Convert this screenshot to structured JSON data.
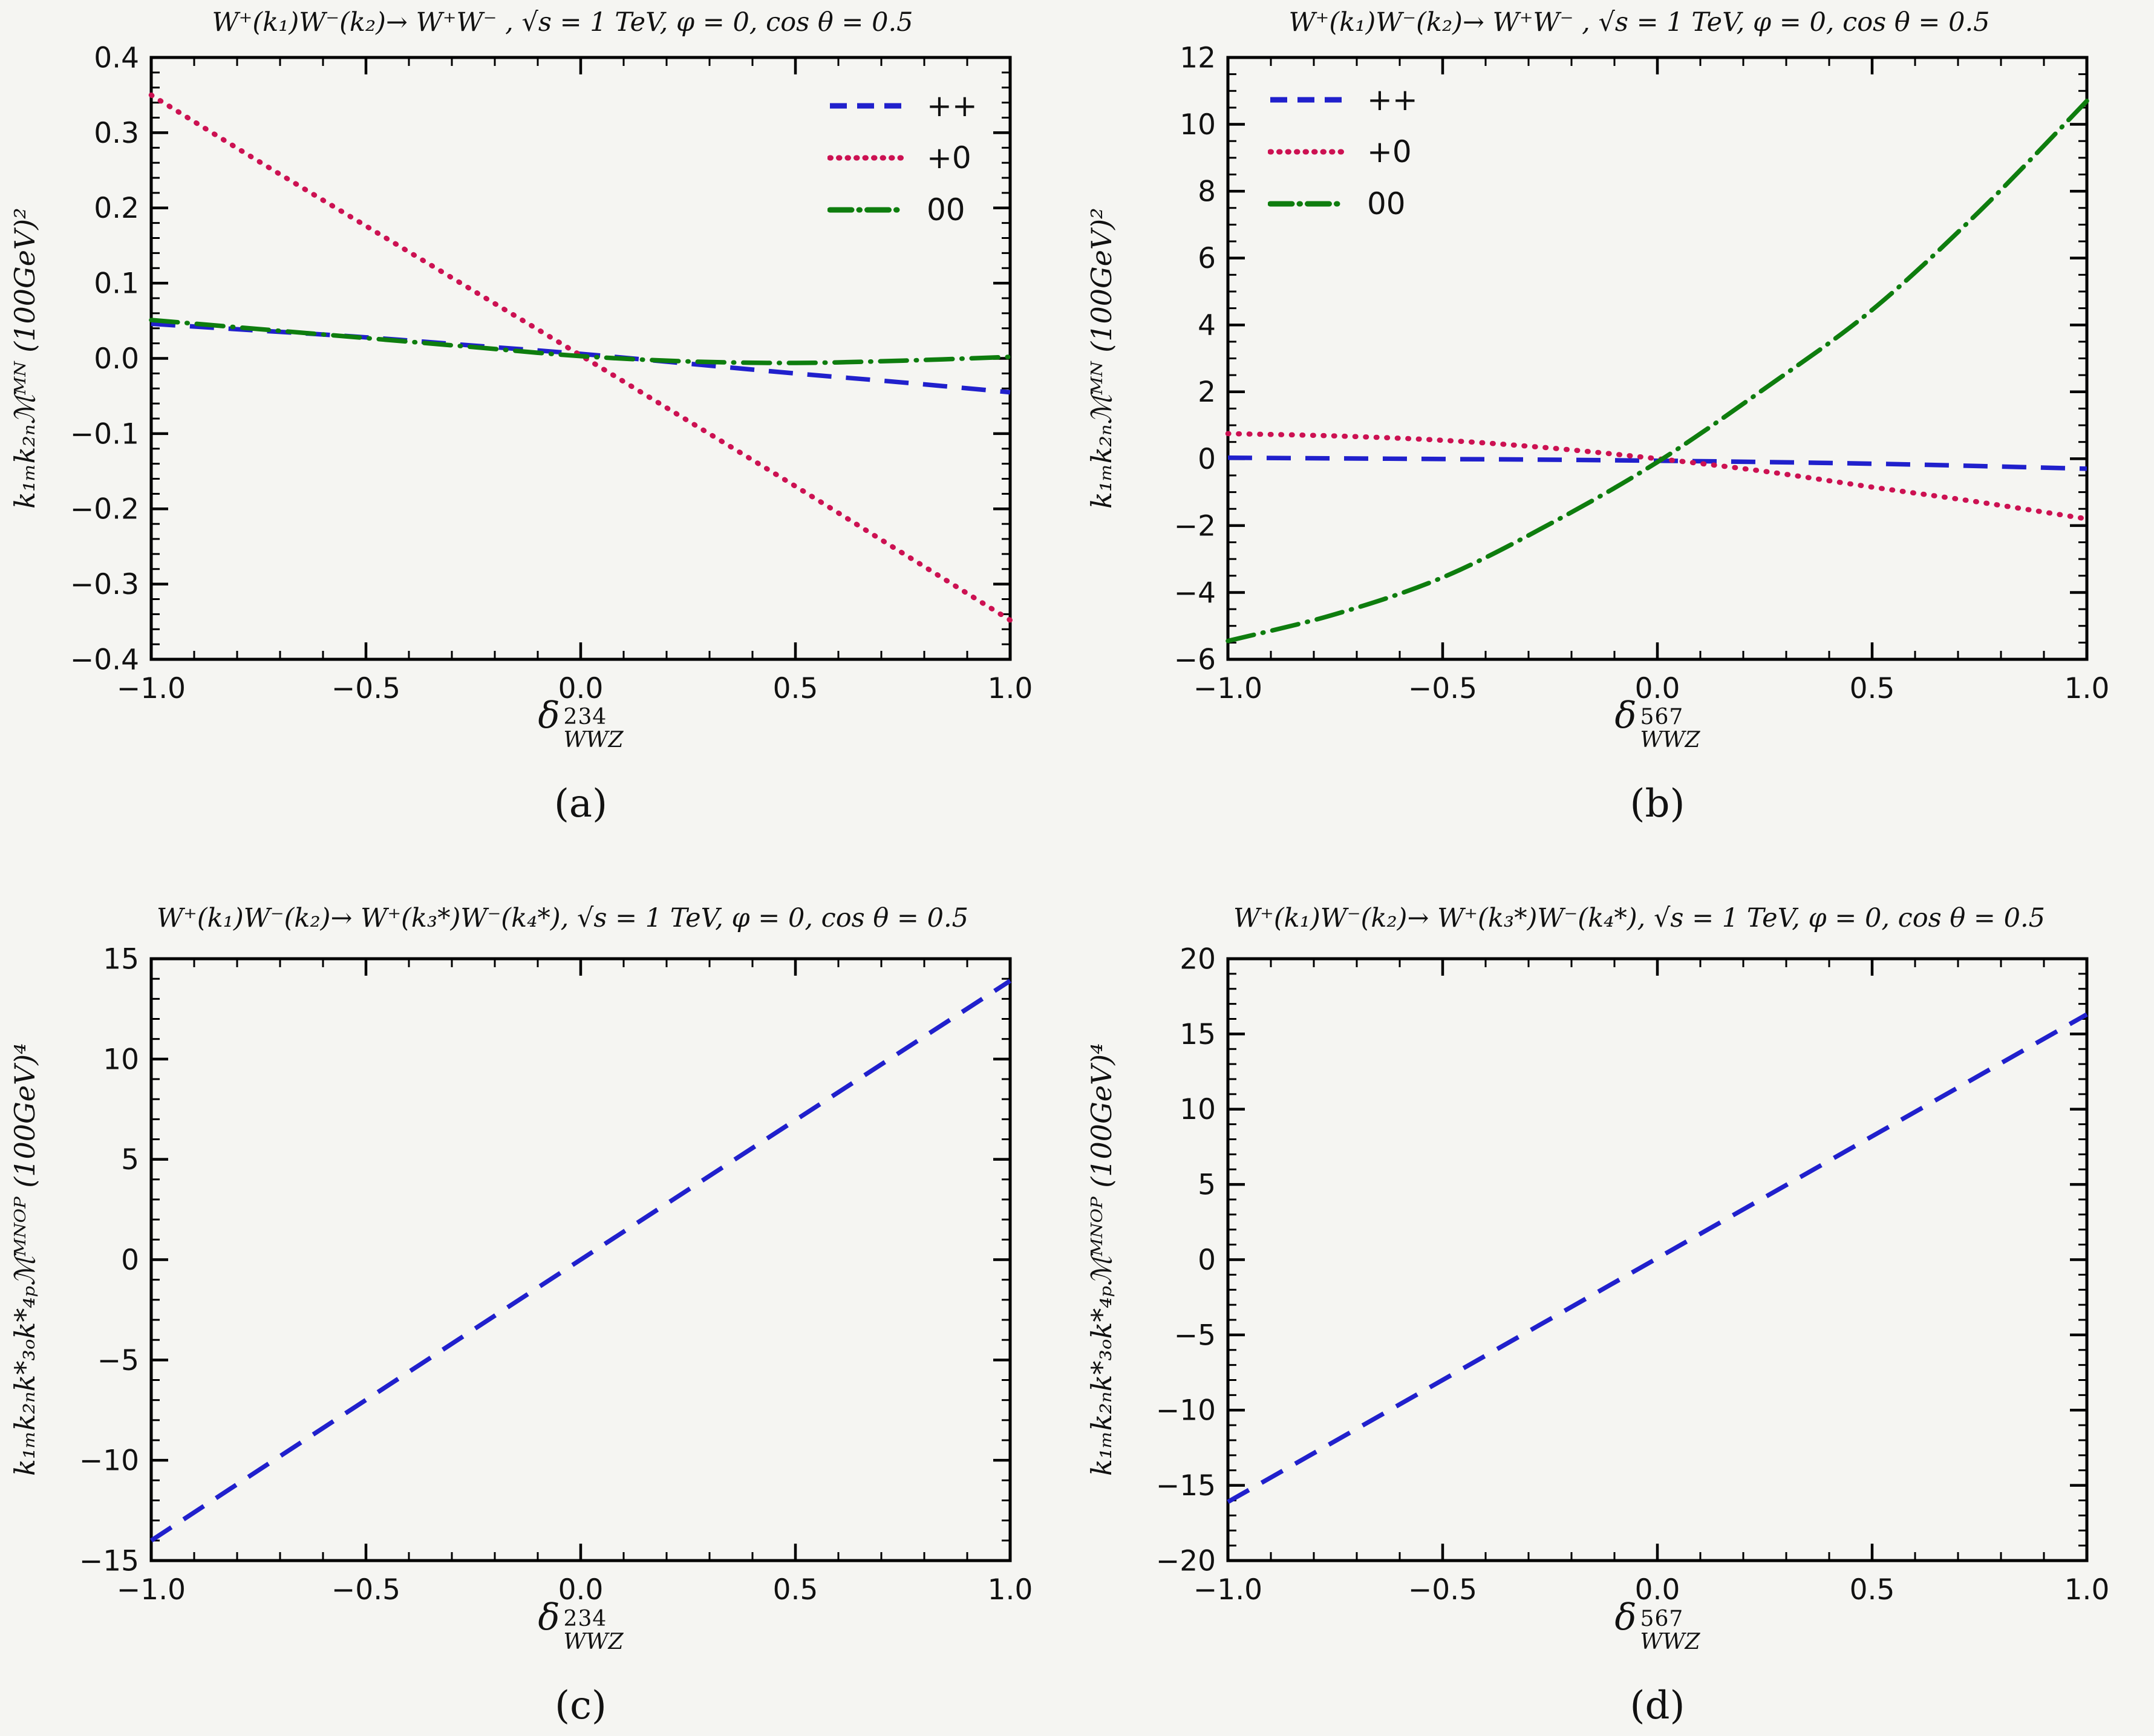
{
  "figure": {
    "background": "#f5f5f2",
    "frame_color": "#000000",
    "accent_blue": "#2020cc",
    "accent_red": "#cc1152",
    "accent_green": "#0e7d0e"
  },
  "chart_data": [
    {
      "id": "a",
      "type": "line",
      "title": "W⁺(k₁)W⁻(k₂)→ W⁺W⁻ ,  √s = 1 TeV,  φ = 0, cos θ = 0.5",
      "caption": "(a)",
      "ylabel": "k₁ₘk₂ₙℳᴹᴺ (100GeV)²",
      "xlabel_base": "δ",
      "xlabel_sup": "234",
      "xlabel_sub": "WWZ",
      "xlim": [
        -1.0,
        1.0
      ],
      "ylim": [
        -0.4,
        0.4
      ],
      "xticks": [
        -1.0,
        -0.5,
        0.0,
        0.5,
        1.0
      ],
      "yticks": [
        0.4,
        0.3,
        0.2,
        0.1,
        0.0,
        -0.1,
        -0.2,
        -0.3,
        -0.4
      ],
      "xtick_decimals": 1,
      "ytick_decimals": 1,
      "minor_x_step": 0.1,
      "minor_y_step": 0.02,
      "grid": false,
      "legend_pos": "top-right",
      "series": [
        {
          "name": "++",
          "style": "dashed",
          "color": "#2020cc",
          "x": [
            -1,
            -0.75,
            -0.5,
            -0.25,
            0,
            0.25,
            0.5,
            0.75,
            1
          ],
          "y": [
            0.046,
            0.037,
            0.028,
            0.017,
            0.006,
            -0.007,
            -0.02,
            -0.032,
            -0.045
          ]
        },
        {
          "name": "+0",
          "style": "dotted",
          "color": "#cc1152",
          "x": [
            -1,
            -0.75,
            -0.5,
            -0.25,
            0,
            0.25,
            0.5,
            0.75,
            1
          ],
          "y": [
            0.35,
            0.262,
            0.176,
            0.09,
            0.004,
            -0.083,
            -0.17,
            -0.259,
            -0.348
          ]
        },
        {
          "name": "00",
          "style": "dashdot",
          "color": "#0e7d0e",
          "x": [
            -1,
            -0.75,
            -0.5,
            -0.25,
            0,
            0.25,
            0.5,
            0.75,
            1
          ],
          "y": [
            0.051,
            0.039,
            0.027,
            0.015,
            0.003,
            -0.004,
            -0.006,
            -0.003,
            0.002
          ]
        }
      ]
    },
    {
      "id": "b",
      "type": "line",
      "title": "W⁺(k₁)W⁻(k₂)→ W⁺W⁻ ,  √s = 1 TeV,  φ = 0, cos θ = 0.5",
      "caption": "(b)",
      "ylabel": "k₁ₘk₂ₙℳᴹᴺ (100GeV)²",
      "xlabel_base": "δ",
      "xlabel_sup": "567",
      "xlabel_sub": "WWZ",
      "xlim": [
        -1.0,
        1.0
      ],
      "ylim": [
        -6,
        12
      ],
      "xticks": [
        -1.0,
        -0.5,
        0.0,
        0.5,
        1.0
      ],
      "yticks": [
        12,
        10,
        8,
        6,
        4,
        2,
        0,
        -2,
        -4,
        -6
      ],
      "xtick_decimals": 1,
      "ytick_decimals": 0,
      "minor_x_step": 0.1,
      "minor_y_step": 0.5,
      "grid": false,
      "legend_pos": "top-left",
      "series": [
        {
          "name": "++",
          "style": "dashed",
          "color": "#2020cc",
          "x": [
            -1,
            -0.75,
            -0.5,
            -0.25,
            0,
            0.25,
            0.5,
            0.75,
            1
          ],
          "y": [
            0.03,
            0.01,
            -0.01,
            -0.03,
            -0.06,
            -0.1,
            -0.15,
            -0.22,
            -0.3
          ]
        },
        {
          "name": "+0",
          "style": "dotted",
          "color": "#cc1152",
          "x": [
            -1,
            -0.75,
            -0.5,
            -0.25,
            0,
            0.25,
            0.5,
            0.75,
            1
          ],
          "y": [
            0.75,
            0.68,
            0.55,
            0.32,
            0.0,
            -0.38,
            -0.85,
            -1.3,
            -1.8
          ]
        },
        {
          "name": "00",
          "style": "dashdot",
          "color": "#0e7d0e",
          "x": [
            -1,
            -0.75,
            -0.5,
            -0.25,
            0,
            0.25,
            0.5,
            0.75,
            1
          ],
          "y": [
            -5.45,
            -4.65,
            -3.55,
            -1.95,
            -0.1,
            2.1,
            4.45,
            7.4,
            10.7
          ]
        }
      ]
    },
    {
      "id": "c",
      "type": "line",
      "title": "W⁺(k₁)W⁻(k₂)→ W⁺(k₃*)W⁻(k₄*),  √s = 1 TeV,  φ = 0, cos θ = 0.5",
      "caption": "(c)",
      "ylabel": "k₁ₘk₂ₙk*₃ₒk*₄ₚℳᴹᴺᴼᴾ (100GeV)⁴",
      "xlabel_base": "δ",
      "xlabel_sup": "234",
      "xlabel_sub": "WWZ",
      "xlim": [
        -1.0,
        1.0
      ],
      "ylim": [
        -15,
        15
      ],
      "xticks": [
        -1.0,
        -0.5,
        0.0,
        0.5,
        1.0
      ],
      "yticks": [
        15,
        10,
        5,
        0,
        -5,
        -10,
        -15
      ],
      "xtick_decimals": 1,
      "ytick_decimals": 0,
      "minor_x_step": 0.1,
      "minor_y_step": 1,
      "grid": false,
      "legend_pos": "none",
      "series": [
        {
          "name": "",
          "style": "dashed",
          "color": "#2020cc",
          "x": [
            -1,
            0,
            1
          ],
          "y": [
            -14.0,
            0.0,
            13.9
          ]
        }
      ]
    },
    {
      "id": "d",
      "type": "line",
      "title": "W⁺(k₁)W⁻(k₂)→ W⁺(k₃*)W⁻(k₄*),  √s = 1 TeV,  φ = 0, cos θ = 0.5",
      "caption": "(d)",
      "ylabel": "k₁ₘk₂ₙk*₃ₒk*₄ₚℳᴹᴺᴼᴾ (100GeV)⁴",
      "xlabel_base": "δ",
      "xlabel_sup": "567",
      "xlabel_sub": "WWZ",
      "xlim": [
        -1.0,
        1.0
      ],
      "ylim": [
        -20,
        20
      ],
      "xticks": [
        -1.0,
        -0.5,
        0.0,
        0.5,
        1.0
      ],
      "yticks": [
        20,
        15,
        10,
        5,
        0,
        -5,
        -10,
        -15,
        -20
      ],
      "xtick_decimals": 1,
      "ytick_decimals": 0,
      "minor_x_step": 0.1,
      "minor_y_step": 1,
      "grid": false,
      "legend_pos": "none",
      "series": [
        {
          "name": "",
          "style": "dashed",
          "color": "#2020cc",
          "x": [
            -1,
            0,
            1
          ],
          "y": [
            -16.1,
            0.1,
            16.3
          ]
        }
      ]
    }
  ]
}
